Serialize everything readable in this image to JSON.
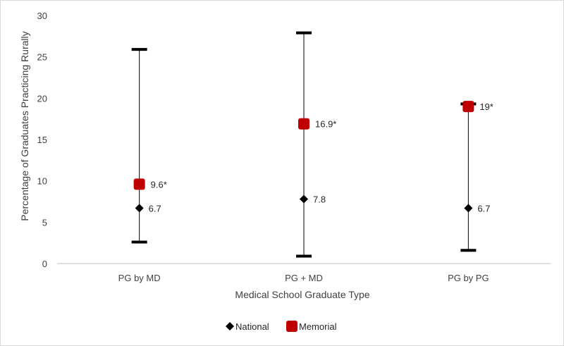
{
  "chart_data": {
    "type": "scatter",
    "title": "",
    "xlabel": "Medical School Graduate Type",
    "ylabel": "Percentage of Graduates Practicing Rurally",
    "ylim": [
      0,
      30
    ],
    "yticks": [
      0,
      5,
      10,
      15,
      20,
      25,
      30
    ],
    "categories": [
      "PG by MD",
      "PG + MD",
      "PG by PG"
    ],
    "ranges": [
      {
        "low": 2.6,
        "high": 25.9
      },
      {
        "low": 0.9,
        "high": 27.9
      },
      {
        "low": 1.6,
        "high": 19.3
      }
    ],
    "series": [
      {
        "name": "National",
        "color": "#000000",
        "marker": "diamond",
        "values": [
          6.7,
          7.8,
          6.7
        ],
        "labels": [
          "6.7",
          "7.8",
          "6.7"
        ]
      },
      {
        "name": "Memorial",
        "color": "#c00000",
        "marker": "square",
        "values": [
          9.6,
          16.9,
          19.0
        ],
        "labels": [
          "9.6*",
          "16.9*",
          "19*"
        ]
      }
    ],
    "grid": false,
    "legend": "bottom"
  }
}
